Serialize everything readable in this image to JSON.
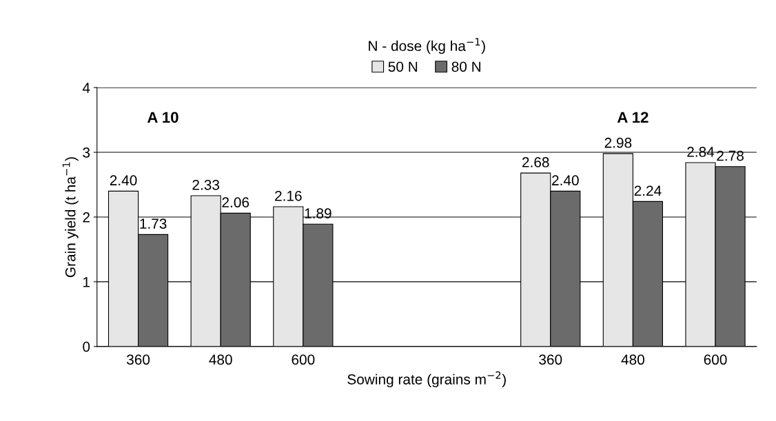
{
  "chart_data": {
    "type": "bar",
    "categories": [
      "360",
      "480",
      "600",
      null,
      null,
      "360",
      "480",
      "600"
    ],
    "series": [
      {
        "name": "50 N",
        "color": "#e6e6e6",
        "values": [
          2.4,
          2.33,
          2.16,
          null,
          null,
          2.68,
          2.98,
          2.84
        ],
        "value_labels": [
          "2.40",
          "2.33",
          "2.16",
          null,
          null,
          "2.68",
          "2.98",
          "2.84"
        ]
      },
      {
        "name": "80 N",
        "color": "#6b6b6b",
        "values": [
          1.73,
          2.06,
          1.89,
          null,
          null,
          2.4,
          2.24,
          2.78
        ],
        "value_labels": [
          "1.73",
          "2.06",
          "1.89",
          null,
          null,
          "2.40",
          "2.24",
          "2.78"
        ]
      }
    ],
    "xlabel": "Sowing rate (grains m$^{−2}$)",
    "ylabel": "Grain yield (t ha$^{−1}$)",
    "legend_title": "N - dose (kg ha$^{−1}$)",
    "legend": "top",
    "annotations": [
      "A 10",
      "A 12"
    ],
    "ylim": [
      0,
      4
    ],
    "yticks": [
      0,
      1,
      2,
      3,
      4
    ],
    "grid": "y"
  }
}
